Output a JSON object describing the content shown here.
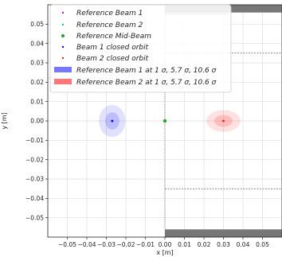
{
  "chart_data": {
    "type": "scatter",
    "xlabel": "x [m]",
    "ylabel": "y [m]",
    "xlim": [
      -0.06,
      0.06
    ],
    "ylim": [
      -0.06,
      0.06
    ],
    "grid": true,
    "legend_position": "top-left",
    "x_ticks": [
      -0.05,
      -0.04,
      -0.03,
      -0.02,
      -0.01,
      0.0,
      0.01,
      0.02,
      0.03,
      0.04,
      0.05
    ],
    "x_tick_labels": [
      "−0.05",
      "−0.04",
      "−0.03",
      "−0.02",
      "−0.01",
      "0.00",
      "0.01",
      "0.02",
      "0.03",
      "0.04",
      "0.05"
    ],
    "y_ticks": [
      0.05,
      0.04,
      0.03,
      0.02,
      0.01,
      0.0,
      -0.01,
      -0.02,
      -0.03,
      -0.04,
      -0.05
    ],
    "y_tick_labels": [
      "0.05",
      "0.04",
      "0.03",
      "0.02",
      "0.01",
      "0.00",
      "−0.01",
      "−0.02",
      "−0.03",
      "−0.04",
      "−0.05"
    ],
    "colors": {
      "beam1": "#8a2be2",
      "beam2": "#17becf",
      "mid": "#2ca02c",
      "orbit1": "#0000cc",
      "orbit2": "#d62728",
      "env1": "#7777ff",
      "env2": "#ff7777"
    },
    "series": [
      {
        "name": "Reference Beam 1",
        "marker": "point",
        "x": [
          -0.027
        ],
        "y": [
          0.0
        ]
      },
      {
        "name": "Reference Beam 2",
        "marker": "point",
        "x": [
          0.03
        ],
        "y": [
          0.0
        ]
      },
      {
        "name": "Reference Mid-Beam",
        "marker": "point",
        "x": [
          0.0
        ],
        "y": [
          0.0
        ]
      },
      {
        "name": "Beam 1 closed orbit",
        "marker": "point",
        "x": [
          -0.027
        ],
        "y": [
          0.0
        ]
      },
      {
        "name": "Beam 2 closed orbit",
        "marker": "point",
        "x": [
          0.03
        ],
        "y": [
          0.0
        ]
      }
    ],
    "envelopes": [
      {
        "name": "Reference Beam 1 at 1 σ, 5.7 σ, 10.6 σ",
        "cx": -0.027,
        "cy": 0.0,
        "sigma_x": 0.00064,
        "sigma_y": 0.00078,
        "levels": [
          1,
          5.7,
          10.6
        ]
      },
      {
        "name": "Reference Beam 2 at 1 σ, 5.7 σ, 10.6 σ",
        "cx": 0.03,
        "cy": 0.0,
        "sigma_x": 0.00082,
        "sigma_y": 0.00053,
        "levels": [
          1,
          5.7,
          10.6
        ]
      }
    ],
    "apertures": [
      {
        "name": "top",
        "x0": 0.0,
        "x1": 0.06,
        "y0": 0.056,
        "y1": 0.06
      },
      {
        "name": "bottom",
        "x0": 0.0,
        "x1": 0.06,
        "y0": -0.06,
        "y1": -0.056
      }
    ],
    "dashed_lines": [
      {
        "x0": 0.0,
        "x1": 0.06,
        "y": 0.035
      },
      {
        "x0": 0.0,
        "x1": 0.06,
        "y": -0.035
      }
    ],
    "dotted_line": {
      "x": 0.0,
      "y0": -0.056,
      "y1": 0.056
    }
  }
}
